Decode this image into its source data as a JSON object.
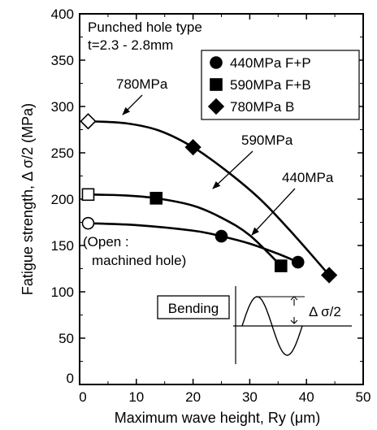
{
  "chart_data": {
    "type": "scatter",
    "xlabel": "Maximum wave height, Ry (μm)",
    "ylabel": "Fatigue strength, Δ σ/2 (MPa)",
    "xlim": [
      0,
      50
    ],
    "ylim": [
      0,
      400
    ],
    "xticks": [
      0,
      10,
      20,
      30,
      40,
      50
    ],
    "yticks": [
      0,
      50,
      100,
      150,
      200,
      250,
      300,
      350,
      400
    ],
    "grid": false,
    "legend_position": "top-right",
    "annotations": {
      "condition_line1": "Punched hole type",
      "condition_line2": "t=2.3 - 2.8mm",
      "open_label_line1": "(Open :",
      "open_label_line2": "machined hole)",
      "label_780": "780MPa",
      "label_590": "590MPa",
      "label_440": "440MPa",
      "bending_label": "Bending",
      "bending_amplitude": "Δ σ/2"
    },
    "series": [
      {
        "name": "440MPa  F+P",
        "marker": "circle",
        "open_points": [
          {
            "x": 1.5,
            "y": 174
          }
        ],
        "points": [
          {
            "x": 25,
            "y": 160
          },
          {
            "x": 38.5,
            "y": 132
          }
        ],
        "curve": [
          [
            1.5,
            174
          ],
          [
            10,
            172
          ],
          [
            20,
            166
          ],
          [
            25,
            160
          ],
          [
            30,
            152
          ],
          [
            35,
            141
          ],
          [
            38.5,
            132
          ]
        ]
      },
      {
        "name": "590MPa  F+B",
        "marker": "square",
        "open_points": [
          {
            "x": 1.5,
            "y": 205
          }
        ],
        "points": [
          {
            "x": 13.5,
            "y": 201
          },
          {
            "x": 35.5,
            "y": 128
          }
        ],
        "curve": [
          [
            1.5,
            205
          ],
          [
            8,
            204
          ],
          [
            13.5,
            201
          ],
          [
            20,
            193
          ],
          [
            25,
            180
          ],
          [
            30,
            161
          ],
          [
            35.5,
            128
          ]
        ]
      },
      {
        "name": "780MPa  B",
        "marker": "diamond",
        "open_points": [
          {
            "x": 1.5,
            "y": 284
          }
        ],
        "points": [
          {
            "x": 20,
            "y": 256
          },
          {
            "x": 44,
            "y": 118
          }
        ],
        "curve": [
          [
            1.5,
            284
          ],
          [
            8,
            282
          ],
          [
            14,
            274
          ],
          [
            20,
            256
          ],
          [
            26,
            230
          ],
          [
            32,
            199
          ],
          [
            38,
            160
          ],
          [
            44,
            118
          ]
        ]
      }
    ]
  }
}
